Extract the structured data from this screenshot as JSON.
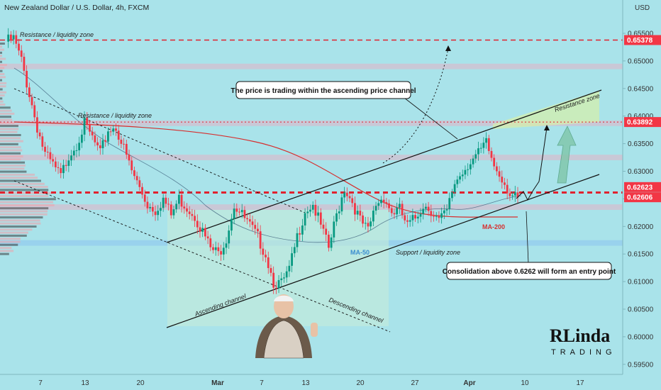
{
  "header": {
    "title": "New Zealand Dollar / U.S. Dollar, 4h, FXCM",
    "currency": "USD"
  },
  "chart_data": {
    "type": "candlestick",
    "title": "New Zealand Dollar / U.S. Dollar, 4h, FXCM",
    "ylabel": "USD",
    "ylim": [
      0.5925,
      0.6575
    ],
    "y_ticks": [
      "0.65500",
      "0.65000",
      "0.64500",
      "0.64000",
      "0.63500",
      "0.63000",
      "0.62500",
      "0.62000",
      "0.61500",
      "0.61000",
      "0.60500",
      "0.60000",
      "0.59500"
    ],
    "x_ticks": [
      "7",
      "13",
      "20",
      "Mar",
      "7",
      "13",
      "20",
      "27",
      "Apr",
      "10",
      "17"
    ],
    "price_tags": [
      {
        "label": "0.65378",
        "value": 0.65378
      },
      {
        "label": "0.63892",
        "value": 0.63892
      },
      {
        "label": "0.62623",
        "value": 0.62623
      },
      {
        "label": "0.62606",
        "value": 0.62606
      }
    ],
    "price_path": [
      [
        0,
        0.6535
      ],
      [
        3,
        0.654
      ],
      [
        6,
        0.65
      ],
      [
        9,
        0.644
      ],
      [
        12,
        0.638
      ],
      [
        15,
        0.633
      ],
      [
        18,
        0.631
      ],
      [
        21,
        0.629
      ],
      [
        24,
        0.633
      ],
      [
        27,
        0.635
      ],
      [
        30,
        0.6385
      ],
      [
        33,
        0.636
      ],
      [
        36,
        0.633
      ],
      [
        39,
        0.6375
      ],
      [
        42,
        0.638
      ],
      [
        45,
        0.634
      ],
      [
        48,
        0.63
      ],
      [
        51,
        0.627
      ],
      [
        54,
        0.624
      ],
      [
        57,
        0.623
      ],
      [
        60,
        0.625
      ],
      [
        63,
        0.622
      ],
      [
        66,
        0.625
      ],
      [
        69,
        0.6235
      ],
      [
        72,
        0.622
      ],
      [
        75,
        0.619
      ],
      [
        78,
        0.616
      ],
      [
        81,
        0.615
      ],
      [
        84,
        0.618
      ],
      [
        87,
        0.624
      ],
      [
        90,
        0.622
      ],
      [
        93,
        0.62
      ],
      [
        96,
        0.618
      ],
      [
        99,
        0.615
      ],
      [
        102,
        0.61
      ],
      [
        105,
        0.6095
      ],
      [
        108,
        0.612
      ],
      [
        111,
        0.618
      ],
      [
        114,
        0.623
      ],
      [
        117,
        0.624
      ],
      [
        120,
        0.62
      ],
      [
        123,
        0.616
      ],
      [
        126,
        0.622
      ],
      [
        129,
        0.627
      ],
      [
        132,
        0.6245
      ],
      [
        135,
        0.621
      ],
      [
        138,
        0.619
      ],
      [
        141,
        0.624
      ],
      [
        144,
        0.6255
      ],
      [
        147,
        0.6225
      ],
      [
        150,
        0.623
      ],
      [
        153,
        0.62
      ],
      [
        156,
        0.6215
      ],
      [
        159,
        0.624
      ],
      [
        162,
        0.623
      ],
      [
        165,
        0.621
      ],
      [
        168,
        0.6225
      ],
      [
        171,
        0.628
      ],
      [
        174,
        0.63
      ],
      [
        177,
        0.632
      ],
      [
        180,
        0.633
      ],
      [
        183,
        0.635
      ],
      [
        186,
        0.631
      ],
      [
        189,
        0.629
      ],
      [
        192,
        0.626
      ],
      [
        195,
        0.6245
      ]
    ],
    "levels": [
      {
        "name": "Resistance / liquidity zone",
        "value": 0.65378
      },
      {
        "name": "Resistance / liquidity zone",
        "value": 0.63892
      },
      {
        "name": "Support / liquidity zone",
        "value": 0.6262
      }
    ],
    "zones": [
      {
        "from": 0.6485,
        "to": 0.6495
      },
      {
        "from": 0.6382,
        "to": 0.6392
      },
      {
        "from": 0.632,
        "to": 0.633
      },
      {
        "from": 0.623,
        "to": 0.624
      },
      {
        "from": 0.6165,
        "to": 0.6175
      }
    ],
    "moving_averages": [
      {
        "name": "MA-50",
        "color": "#3b8ed0"
      },
      {
        "name": "MA-200",
        "color": "#d72e2e"
      }
    ],
    "annotations": {
      "channel_note": "The price is trading within the ascending price channel",
      "entry_note": "Consolidation above 0.6262 will form an entry point",
      "resistance_top": "Resistance / liquidity zone",
      "resistance_mid": "Resistance / liquidity zone",
      "support": "Support / liquidity zone",
      "resistance_zone": "Resistance zone",
      "ascending": "Ascending channel",
      "descending": "Descending channel"
    },
    "colors": {
      "bull": "#089981",
      "bear": "#f23645",
      "tag": "#f23645",
      "background": "#a9e3ea"
    }
  },
  "brand": {
    "line1": "RLinda",
    "line2": "TRADING"
  }
}
